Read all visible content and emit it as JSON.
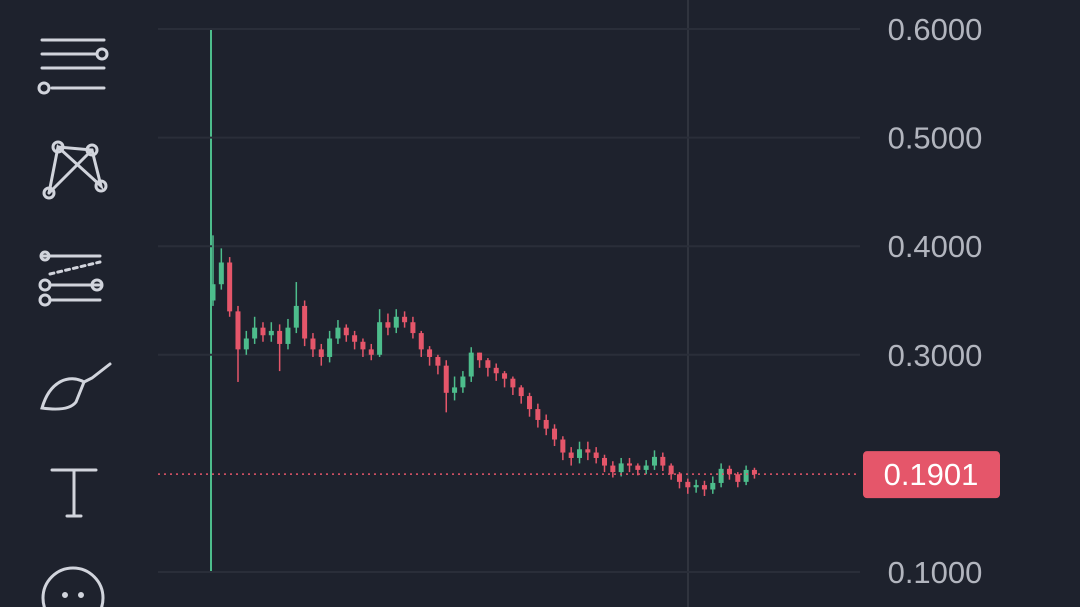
{
  "chart_data": {
    "type": "candlestick",
    "open": [
      0.35,
      0.365,
      0.385,
      0.34,
      0.305,
      0.315,
      0.325,
      0.318,
      0.322,
      0.31,
      0.325,
      0.345,
      0.315,
      0.305,
      0.298,
      0.315,
      0.325,
      0.318,
      0.312,
      0.305,
      0.3,
      0.33,
      0.325,
      0.335,
      0.33,
      0.32,
      0.305,
      0.298,
      0.29,
      0.265,
      0.27,
      0.28,
      0.302,
      0.295,
      0.288,
      0.283,
      0.278,
      0.27,
      0.262,
      0.25,
      0.24,
      0.232,
      0.222,
      0.21,
      0.205,
      0.213,
      0.21,
      0.205,
      0.198,
      0.192,
      0.2,
      0.198,
      0.194,
      0.198,
      0.206,
      0.198,
      0.19,
      0.183,
      0.178,
      0.18,
      0.176,
      0.182,
      0.195,
      0.19,
      0.183,
      0.194
    ],
    "high": [
      0.41,
      0.398,
      0.39,
      0.345,
      0.322,
      0.335,
      0.33,
      0.33,
      0.328,
      0.333,
      0.367,
      0.35,
      0.32,
      0.31,
      0.322,
      0.332,
      0.328,
      0.322,
      0.315,
      0.31,
      0.342,
      0.338,
      0.342,
      0.34,
      0.335,
      0.322,
      0.308,
      0.3,
      0.295,
      0.28,
      0.285,
      0.307,
      0.302,
      0.297,
      0.292,
      0.285,
      0.28,
      0.272,
      0.265,
      0.255,
      0.245,
      0.236,
      0.225,
      0.215,
      0.22,
      0.22,
      0.215,
      0.208,
      0.202,
      0.205,
      0.205,
      0.2,
      0.203,
      0.212,
      0.21,
      0.2,
      0.192,
      0.186,
      0.185,
      0.184,
      0.188,
      0.2,
      0.198,
      0.192,
      0.198,
      0.196
    ],
    "low": [
      0.345,
      0.36,
      0.335,
      0.275,
      0.3,
      0.31,
      0.312,
      0.312,
      0.285,
      0.305,
      0.32,
      0.308,
      0.298,
      0.29,
      0.293,
      0.31,
      0.312,
      0.305,
      0.298,
      0.295,
      0.298,
      0.318,
      0.32,
      0.325,
      0.315,
      0.298,
      0.29,
      0.282,
      0.247,
      0.258,
      0.265,
      0.275,
      0.288,
      0.28,
      0.276,
      0.27,
      0.263,
      0.255,
      0.243,
      0.233,
      0.226,
      0.216,
      0.203,
      0.198,
      0.2,
      0.203,
      0.2,
      0.192,
      0.187,
      0.188,
      0.192,
      0.189,
      0.19,
      0.194,
      0.193,
      0.185,
      0.177,
      0.172,
      0.173,
      0.17,
      0.172,
      0.178,
      0.185,
      0.178,
      0.18,
      0.186
    ],
    "close": [
      0.365,
      0.385,
      0.34,
      0.305,
      0.315,
      0.325,
      0.318,
      0.322,
      0.31,
      0.325,
      0.345,
      0.315,
      0.305,
      0.298,
      0.315,
      0.325,
      0.318,
      0.312,
      0.305,
      0.3,
      0.33,
      0.325,
      0.335,
      0.33,
      0.32,
      0.305,
      0.298,
      0.29,
      0.265,
      0.27,
      0.28,
      0.302,
      0.295,
      0.288,
      0.283,
      0.278,
      0.27,
      0.262,
      0.25,
      0.24,
      0.232,
      0.222,
      0.21,
      0.205,
      0.213,
      0.21,
      0.205,
      0.198,
      0.192,
      0.2,
      0.198,
      0.194,
      0.198,
      0.206,
      0.198,
      0.19,
      0.183,
      0.178,
      0.18,
      0.176,
      0.182,
      0.195,
      0.19,
      0.183,
      0.194,
      0.1901
    ],
    "up_color": "#4dbd8c",
    "down_color": "#e5566a",
    "ylim": [
      0.1,
      0.6
    ],
    "yticks": [
      {
        "value": 0.6,
        "label": "0.6000"
      },
      {
        "value": 0.5,
        "label": "0.5000"
      },
      {
        "value": 0.4,
        "label": "0.4000"
      },
      {
        "value": 0.3,
        "label": "0.3000"
      },
      {
        "value": 0.1,
        "label": "0.1000"
      }
    ],
    "last_price": {
      "value": 0.1901,
      "label": "0.1901"
    },
    "grid": true
  }
}
